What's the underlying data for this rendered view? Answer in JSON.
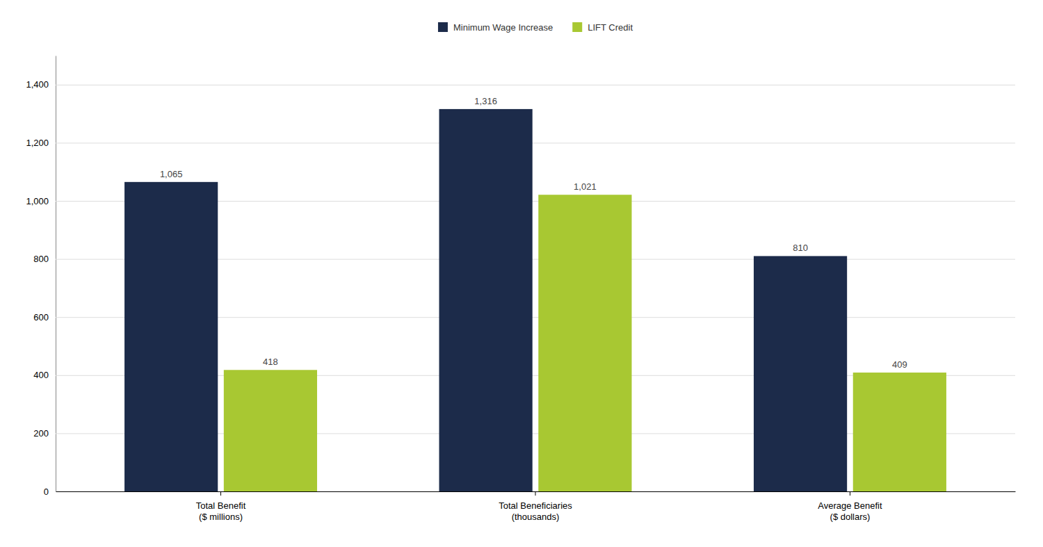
{
  "chart_data": {
    "type": "bar",
    "categories": [
      "Total Benefit\n($ millions)",
      "Total Beneficiaries\n(thousands)",
      "Average Benefit\n($ dollars)"
    ],
    "series": [
      {
        "name": "Minimum Wage Increase",
        "color": "#1c2b4a",
        "values": [
          1065,
          1316,
          810
        ],
        "value_labels": [
          "1,065",
          "1,316",
          "810"
        ]
      },
      {
        "name": "LIFT Credit",
        "color": "#a8c832",
        "values": [
          418,
          1021,
          409
        ],
        "value_labels": [
          "418",
          "1,021",
          "409"
        ]
      }
    ],
    "ylim": [
      0,
      1500
    ],
    "yticks": [
      0,
      200,
      400,
      600,
      800,
      {
        "value": 1000,
        "label": "1,000"
      },
      {
        "value": 1200,
        "label": "1,200"
      },
      {
        "value": 1400,
        "label": "1,400"
      }
    ],
    "grid": true,
    "legend": "top",
    "data_labels": true
  }
}
